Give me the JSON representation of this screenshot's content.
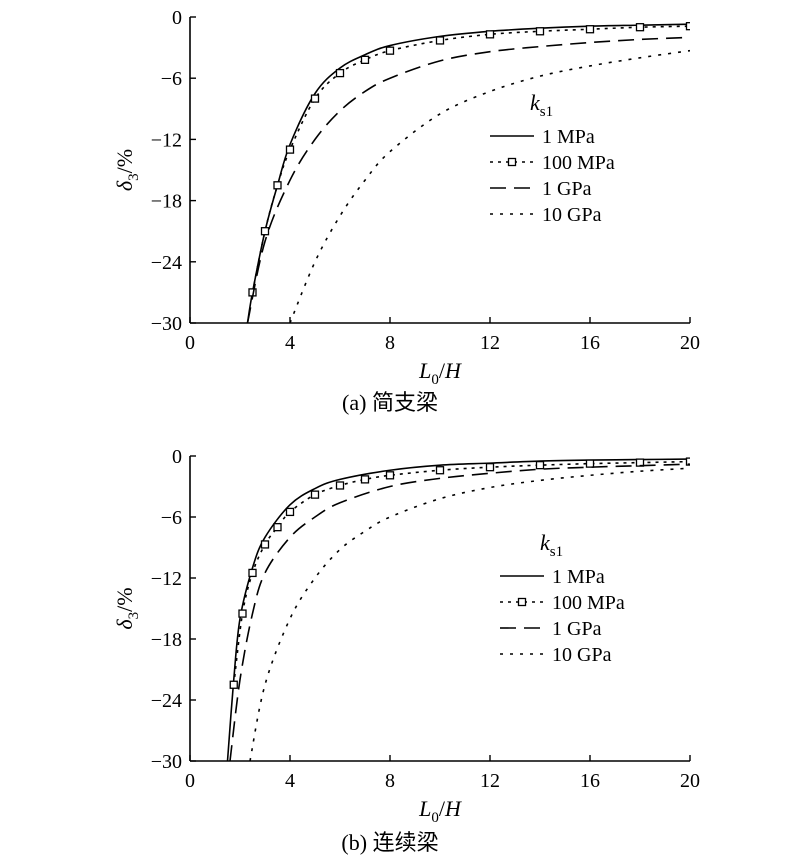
{
  "chart_data": [
    {
      "type": "line",
      "caption": "(a) 简支梁",
      "xlabel": "L0/H",
      "ylabel": "δ3/%",
      "xlim": [
        0,
        20
      ],
      "ylim": [
        -30,
        0
      ],
      "xticks": [
        0,
        4,
        8,
        12,
        16,
        20
      ],
      "yticks": [
        0,
        -6,
        -12,
        -18,
        -24,
        -30
      ],
      "legend_title": "ks1",
      "legend_position": "center-right",
      "grid": false,
      "series": [
        {
          "name": "1 MPa",
          "style": "solid",
          "marker": "none",
          "x": [
            2.3,
            2.5,
            3,
            3.5,
            4,
            5,
            6,
            7,
            8,
            10,
            12,
            14,
            16,
            18,
            20
          ],
          "y": [
            -30,
            -27,
            -21,
            -16.5,
            -12.5,
            -7.5,
            -5,
            -3.7,
            -2.8,
            -1.9,
            -1.4,
            -1.1,
            -0.9,
            -0.8,
            -0.7
          ]
        },
        {
          "name": "100 MPa",
          "style": "dotted",
          "marker": "square",
          "x": [
            2.5,
            3,
            3.5,
            4,
            5,
            6,
            7,
            8,
            10,
            12,
            14,
            16,
            18,
            20
          ],
          "y": [
            -27,
            -21,
            -16.5,
            -13,
            -8,
            -5.5,
            -4.2,
            -3.3,
            -2.3,
            -1.7,
            -1.4,
            -1.2,
            -1.0,
            -0.9
          ]
        },
        {
          "name": "1 GPa",
          "style": "dashed",
          "marker": "none",
          "x": [
            2.3,
            3,
            4,
            5,
            6,
            7,
            8,
            10,
            12,
            14,
            16,
            18,
            20
          ],
          "y": [
            -30,
            -22,
            -16,
            -12,
            -9.2,
            -7.3,
            -6,
            -4.3,
            -3.4,
            -2.9,
            -2.5,
            -2.2,
            -2.0
          ]
        },
        {
          "name": "10 GPa",
          "style": "dotted",
          "marker": "none",
          "x": [
            4,
            5,
            6,
            7,
            8,
            10,
            12,
            14,
            16,
            18,
            20
          ],
          "y": [
            -30,
            -24,
            -19.5,
            -16,
            -13.2,
            -9.5,
            -7.3,
            -5.8,
            -4.8,
            -4.0,
            -3.3
          ]
        }
      ]
    },
    {
      "type": "line",
      "caption": "(b) 连续梁",
      "xlabel": "L0/H",
      "ylabel": "δ3/%",
      "xlim": [
        0,
        20
      ],
      "ylim": [
        -30,
        0
      ],
      "xticks": [
        0,
        4,
        8,
        12,
        16,
        20
      ],
      "yticks": [
        0,
        -6,
        -12,
        -18,
        -24,
        -30
      ],
      "legend_title": "ks1",
      "legend_position": "center-right",
      "grid": false,
      "series": [
        {
          "name": "1 MPa",
          "style": "solid",
          "marker": "none",
          "x": [
            1.5,
            1.75,
            2,
            2.5,
            3,
            4,
            5,
            6,
            8,
            10,
            12,
            14,
            16,
            18,
            20
          ],
          "y": [
            -30,
            -22,
            -16,
            -11,
            -8,
            -4.8,
            -3.2,
            -2.3,
            -1.4,
            -0.9,
            -0.7,
            -0.5,
            -0.4,
            -0.35,
            -0.3
          ]
        },
        {
          "name": "100 MPa",
          "style": "dotted",
          "marker": "square",
          "x": [
            1.75,
            2.1,
            2.5,
            3,
            3.5,
            4,
            5,
            6,
            7,
            8,
            10,
            12,
            14,
            16,
            18,
            20
          ],
          "y": [
            -22.5,
            -15.5,
            -11.5,
            -8.7,
            -7.0,
            -5.5,
            -3.8,
            -2.9,
            -2.3,
            -1.9,
            -1.4,
            -1.1,
            -0.9,
            -0.75,
            -0.65,
            -0.55
          ]
        },
        {
          "name": "1 GPa",
          "style": "dashed",
          "marker": "none",
          "x": [
            1.6,
            2,
            2.5,
            3,
            4,
            5,
            6,
            8,
            10,
            12,
            14,
            16,
            18,
            20
          ],
          "y": [
            -30,
            -22,
            -15.5,
            -11.5,
            -8,
            -6,
            -4.6,
            -3.0,
            -2.2,
            -1.7,
            -1.3,
            -1.1,
            -0.95,
            -0.8
          ]
        },
        {
          "name": "10 GPa",
          "style": "dotted",
          "marker": "none",
          "x": [
            2.4,
            3,
            4,
            5,
            6,
            7,
            8,
            10,
            12,
            14,
            16,
            18,
            20
          ],
          "y": [
            -30,
            -22.5,
            -16,
            -12,
            -9.2,
            -7.4,
            -6,
            -4.2,
            -3.1,
            -2.4,
            -1.9,
            -1.5,
            -1.2
          ]
        }
      ]
    }
  ]
}
